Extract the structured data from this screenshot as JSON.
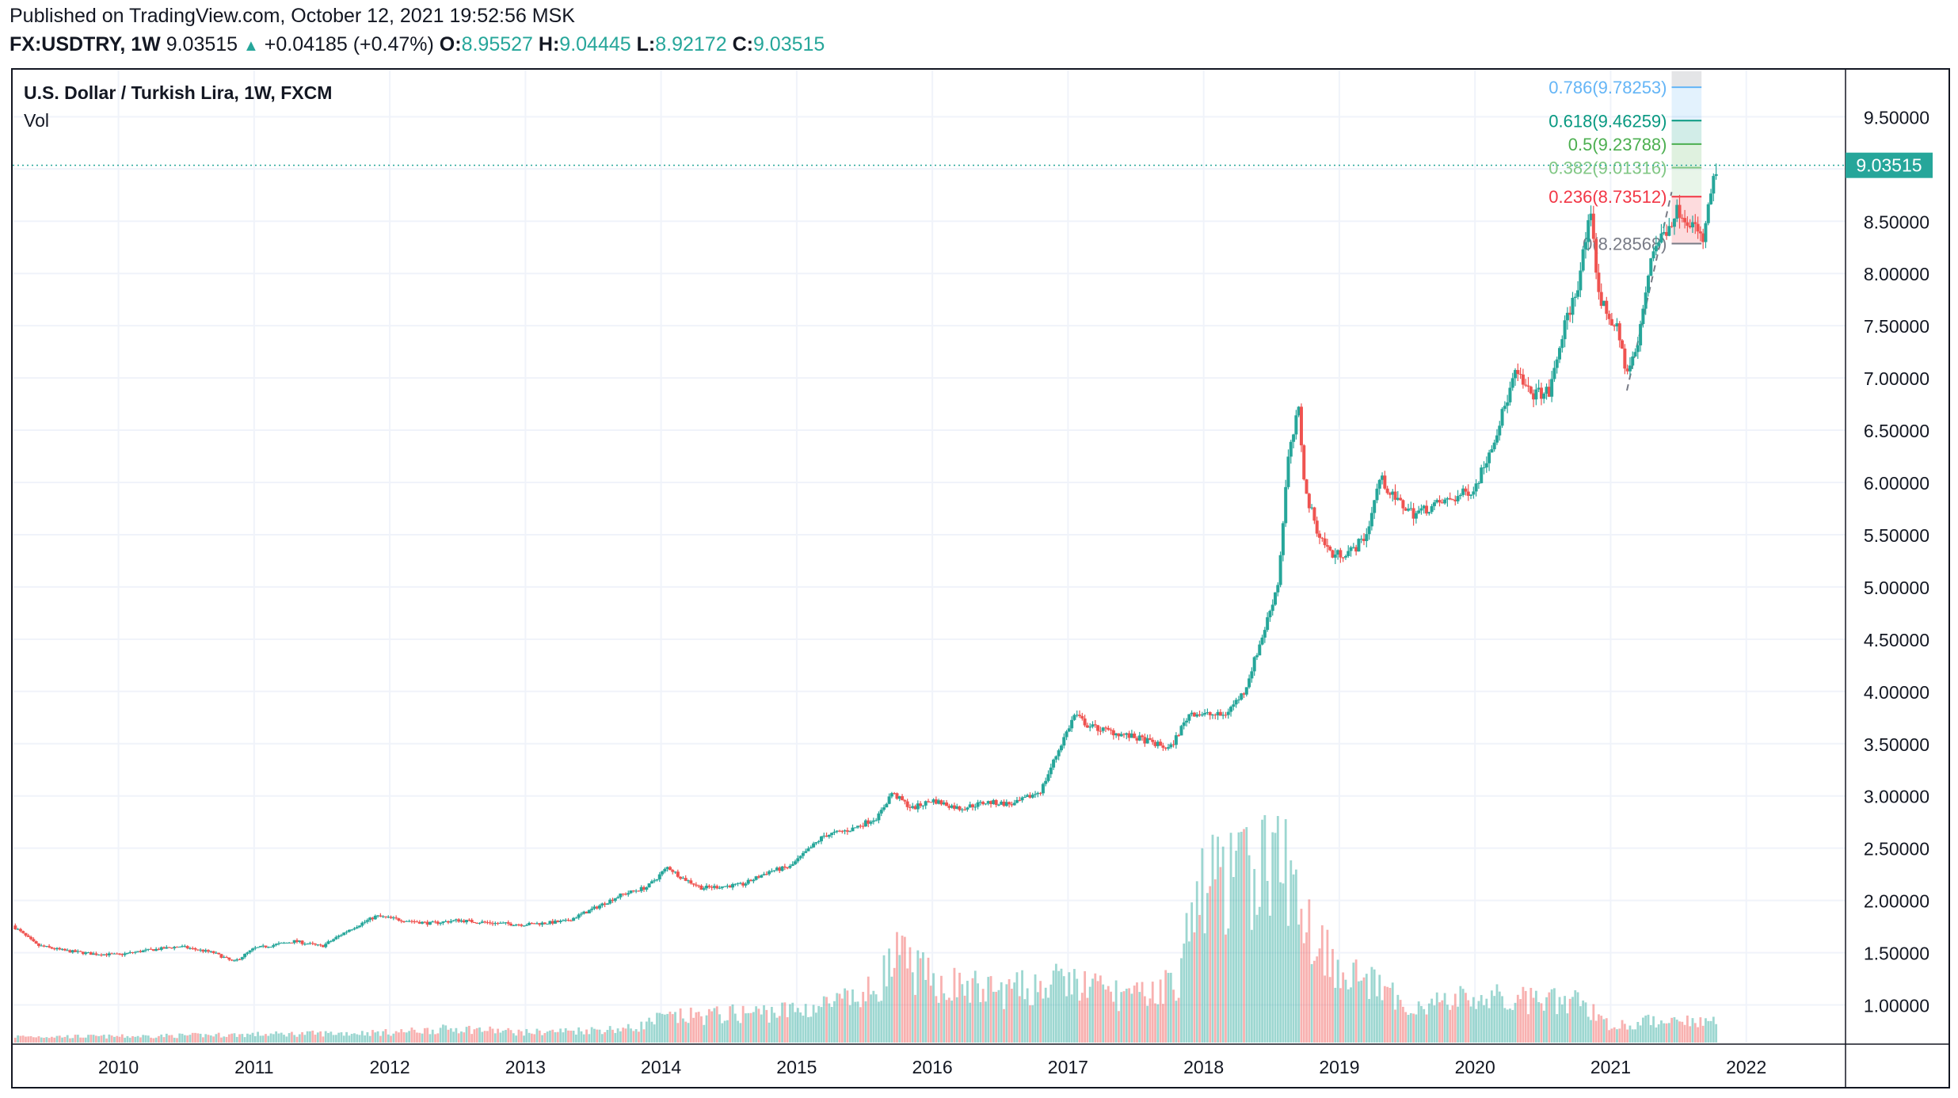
{
  "header": {
    "published": "Published on TradingView.com, October 12, 2021 19:52:56 MSK",
    "symbol": "FX:USDTRY, 1W",
    "last": "9.03515",
    "arrow": "▲",
    "change": "+0.04185 (+0.47%)",
    "open_label": "O:",
    "open": "8.95527",
    "high_label": "H:",
    "high": "9.04445",
    "low_label": "L:",
    "low": "8.92172",
    "close_label": "C:",
    "close": "9.03515"
  },
  "pane": {
    "title": "U.S. Dollar / Turkish Lira, 1W, FXCM",
    "volume_label": "Vol"
  },
  "colors": {
    "up": "#26a69a",
    "down": "#ef5350",
    "grid": "#f0f3fa",
    "axis_text": "#131722",
    "price_tag": "#26a69a"
  },
  "chart_data": {
    "type": "candlestick",
    "title": "U.S. Dollar / Turkish Lira, 1W, FXCM",
    "interval": "1W",
    "grid": true,
    "x_ticks": [
      "2010",
      "2011",
      "2012",
      "2013",
      "2014",
      "2015",
      "2016",
      "2017",
      "2018",
      "2019",
      "2020",
      "2021",
      "2022"
    ],
    "y_ticks": [
      "1.00000",
      "1.50000",
      "2.00000",
      "2.50000",
      "3.00000",
      "3.50000",
      "4.00000",
      "4.50000",
      "5.00000",
      "5.50000",
      "6.00000",
      "6.50000",
      "7.00000",
      "7.50000",
      "8.00000",
      "8.50000",
      "9.00000",
      "9.50000"
    ],
    "y_tick_values": [
      1.0,
      1.5,
      2.0,
      2.5,
      3.0,
      3.5,
      4.0,
      4.5,
      5.0,
      5.5,
      6.0,
      6.5,
      7.0,
      7.5,
      8.0,
      8.5,
      9.0,
      9.5
    ],
    "ylim": [
      0.64,
      9.95
    ],
    "x_range_years": [
      2009.22,
      2022.72
    ],
    "last_price": "9.03515",
    "price_path": [
      [
        2009.22,
        1.76
      ],
      [
        2009.4,
        1.57
      ],
      [
        2009.6,
        1.52
      ],
      [
        2009.8,
        1.49
      ],
      [
        2010.0,
        1.48
      ],
      [
        2010.2,
        1.52
      ],
      [
        2010.45,
        1.56
      ],
      [
        2010.7,
        1.5
      ],
      [
        2010.85,
        1.41
      ],
      [
        2011.0,
        1.54
      ],
      [
        2011.3,
        1.61
      ],
      [
        2011.5,
        1.56
      ],
      [
        2011.7,
        1.72
      ],
      [
        2011.9,
        1.85
      ],
      [
        2012.05,
        1.82
      ],
      [
        2012.3,
        1.78
      ],
      [
        2012.5,
        1.81
      ],
      [
        2012.8,
        1.78
      ],
      [
        2013.0,
        1.77
      ],
      [
        2013.3,
        1.8
      ],
      [
        2013.5,
        1.92
      ],
      [
        2013.7,
        2.05
      ],
      [
        2013.9,
        2.13
      ],
      [
        2014.05,
        2.32
      ],
      [
        2014.15,
        2.22
      ],
      [
        2014.3,
        2.12
      ],
      [
        2014.6,
        2.15
      ],
      [
        2014.8,
        2.28
      ],
      [
        2014.95,
        2.32
      ],
      [
        2015.2,
        2.62
      ],
      [
        2015.4,
        2.68
      ],
      [
        2015.6,
        2.8
      ],
      [
        2015.7,
        3.03
      ],
      [
        2015.85,
        2.88
      ],
      [
        2016.0,
        2.96
      ],
      [
        2016.2,
        2.88
      ],
      [
        2016.4,
        2.94
      ],
      [
        2016.6,
        2.92
      ],
      [
        2016.8,
        3.05
      ],
      [
        2016.95,
        3.5
      ],
      [
        2017.05,
        3.78
      ],
      [
        2017.15,
        3.67
      ],
      [
        2017.3,
        3.62
      ],
      [
        2017.55,
        3.54
      ],
      [
        2017.75,
        3.45
      ],
      [
        2017.9,
        3.8
      ],
      [
        2018.0,
        3.78
      ],
      [
        2018.15,
        3.77
      ],
      [
        2018.3,
        4.0
      ],
      [
        2018.45,
        4.6
      ],
      [
        2018.55,
        5.05
      ],
      [
        2018.62,
        6.2
      ],
      [
        2018.7,
        6.7
      ],
      [
        2018.75,
        5.9
      ],
      [
        2018.85,
        5.5
      ],
      [
        2018.95,
        5.3
      ],
      [
        2019.1,
        5.35
      ],
      [
        2019.2,
        5.5
      ],
      [
        2019.3,
        6.05
      ],
      [
        2019.4,
        5.85
      ],
      [
        2019.55,
        5.7
      ],
      [
        2019.7,
        5.78
      ],
      [
        2019.85,
        5.85
      ],
      [
        2020.0,
        5.95
      ],
      [
        2020.15,
        6.45
      ],
      [
        2020.3,
        7.05
      ],
      [
        2020.4,
        6.85
      ],
      [
        2020.55,
        6.86
      ],
      [
        2020.65,
        7.45
      ],
      [
        2020.75,
        7.85
      ],
      [
        2020.85,
        8.55
      ],
      [
        2020.92,
        7.75
      ],
      [
        2021.05,
        7.45
      ],
      [
        2021.12,
        7.05
      ],
      [
        2021.2,
        7.3
      ],
      [
        2021.3,
        8.2
      ],
      [
        2021.4,
        8.4
      ],
      [
        2021.5,
        8.62
      ],
      [
        2021.6,
        8.48
      ],
      [
        2021.68,
        8.3
      ],
      [
        2021.75,
        8.85
      ],
      [
        2021.79,
        9.035
      ]
    ],
    "volume_relative": [
      [
        2009.22,
        0.03
      ],
      [
        2010.0,
        0.03
      ],
      [
        2011.0,
        0.04
      ],
      [
        2012.0,
        0.05
      ],
      [
        2012.5,
        0.07
      ],
      [
        2013.0,
        0.05
      ],
      [
        2013.8,
        0.07
      ],
      [
        2014.0,
        0.12
      ],
      [
        2014.5,
        0.14
      ],
      [
        2015.0,
        0.16
      ],
      [
        2015.5,
        0.22
      ],
      [
        2015.75,
        0.42
      ],
      [
        2016.0,
        0.3
      ],
      [
        2016.5,
        0.25
      ],
      [
        2017.0,
        0.3
      ],
      [
        2017.5,
        0.22
      ],
      [
        2017.8,
        0.3
      ],
      [
        2018.0,
        0.8
      ],
      [
        2018.25,
        0.8
      ],
      [
        2018.55,
        0.92
      ],
      [
        2018.8,
        0.55
      ],
      [
        2019.0,
        0.38
      ],
      [
        2019.5,
        0.18
      ],
      [
        2020.0,
        0.22
      ],
      [
        2020.5,
        0.2
      ],
      [
        2020.8,
        0.2
      ],
      [
        2021.0,
        0.08
      ],
      [
        2021.5,
        0.12
      ],
      [
        2021.79,
        0.1
      ]
    ],
    "fibonacci": {
      "levels": [
        {
          "ratio": "0",
          "price": "8.28568",
          "label": "0(8.28568)",
          "value": 8.28568,
          "color": "#787b86"
        },
        {
          "ratio": "0.236",
          "price": "8.73512",
          "label": "0.236(8.73512)",
          "value": 8.73512,
          "color": "#f23645"
        },
        {
          "ratio": "0.382",
          "price": "9.01316",
          "label": "0.382(9.01316)",
          "value": 9.01316,
          "color": "#81c784"
        },
        {
          "ratio": "0.5",
          "price": "9.23788",
          "label": "0.5(9.23788)",
          "value": 9.23788,
          "color": "#4caf50"
        },
        {
          "ratio": "0.618",
          "price": "9.46259",
          "label": "0.618(9.46259)",
          "value": 9.46259,
          "color": "#089981"
        },
        {
          "ratio": "0.786",
          "price": "9.78253",
          "label": "0.786(9.78253)",
          "value": 9.78253,
          "color": "#64b5f6"
        }
      ],
      "x_from_year": 2021.45,
      "x_to_year": 2021.67,
      "trend_from": [
        2021.12,
        6.88
      ],
      "trend_to": [
        2021.45,
        8.78
      ]
    }
  }
}
